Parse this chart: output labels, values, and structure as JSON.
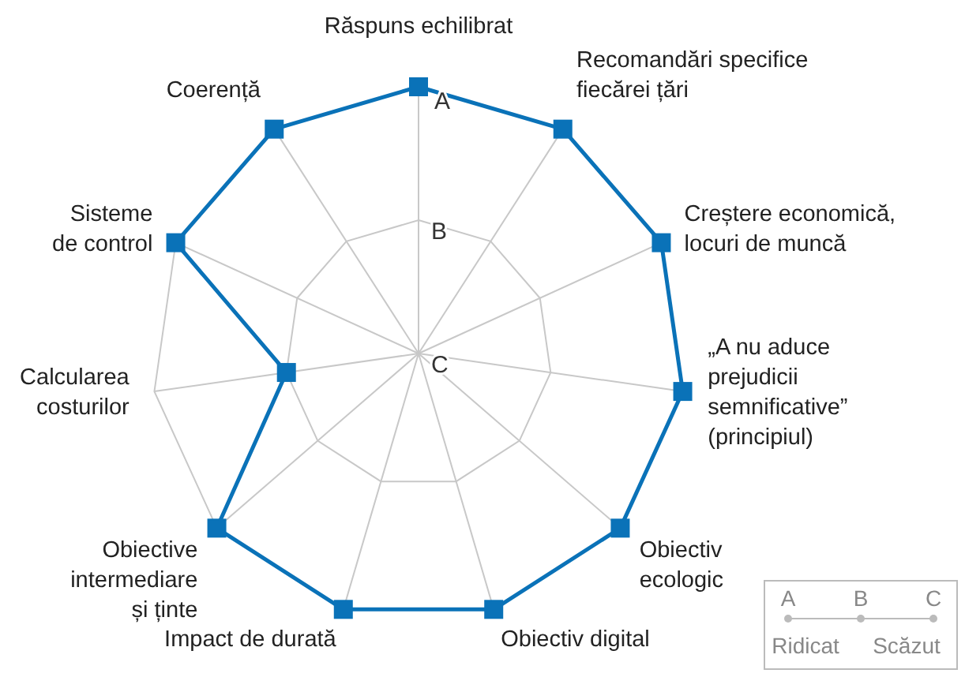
{
  "chart_data": {
    "type": "radar",
    "categories": [
      "Răspuns echilibrat",
      "Recomandări specifice\nfiecărei țări",
      "Creștere economică,\nlocuri de muncă",
      "„A nu aduce\nprejudicii\nsemnificative”\n(principiul)",
      "Obiectiv\necologic",
      "Obiectiv digital",
      "Impact de durată",
      "Obiective\nintermediare\nși ținte",
      "Calcularea\ncosturilor",
      "Sisteme\nde control",
      "Coerență"
    ],
    "series": [
      {
        "color": "#0a72b8",
        "values": [
          2,
          2,
          2,
          2,
          2,
          2,
          2,
          2,
          1,
          2,
          2
        ]
      }
    ],
    "ylim": [
      0,
      2
    ],
    "yticks": [
      {
        "value": 0,
        "label": "C"
      },
      {
        "value": 1,
        "label": "B"
      },
      {
        "value": 2,
        "label": "A"
      }
    ],
    "grid": true,
    "marker": "square",
    "annotations": [
      "Ridicat",
      "Scăzut"
    ]
  }
}
